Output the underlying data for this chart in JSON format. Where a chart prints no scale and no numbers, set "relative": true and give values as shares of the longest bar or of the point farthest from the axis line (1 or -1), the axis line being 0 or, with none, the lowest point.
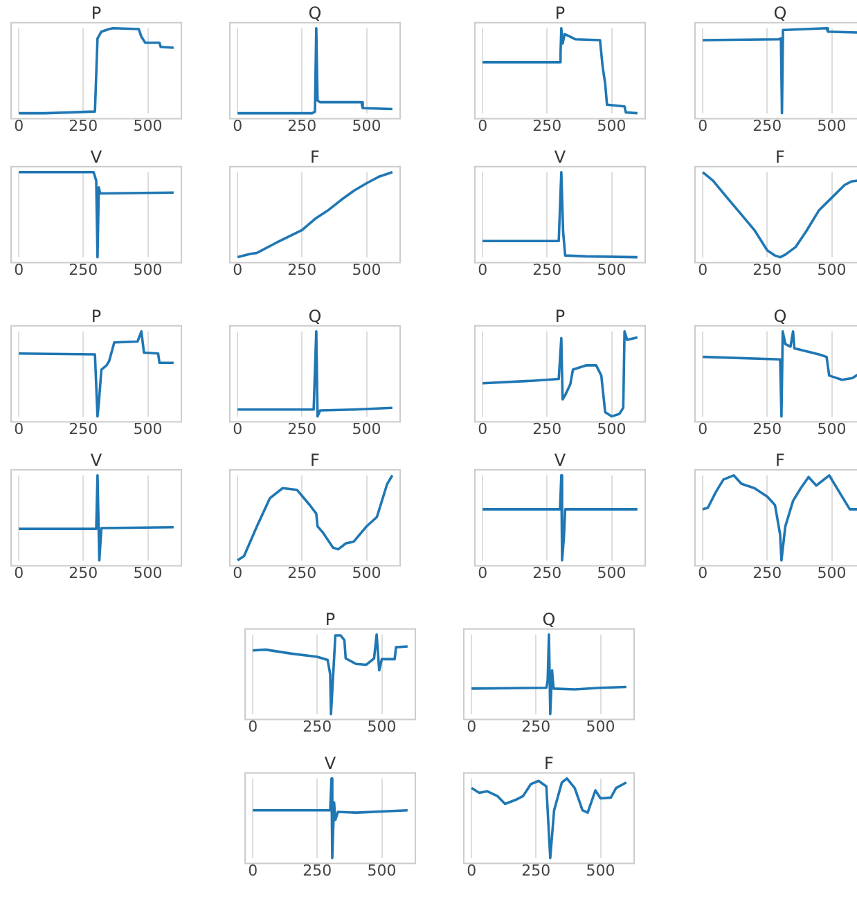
{
  "chart_data": [
    {
      "type": "line",
      "title": "P",
      "relative": true,
      "color": "#1f77b4",
      "xlim": [
        -30,
        630
      ],
      "xticks": [
        0,
        250,
        500
      ],
      "grid": "x",
      "tick_labels": "x",
      "x": [
        0,
        100,
        200,
        295,
        305,
        320,
        350,
        365,
        465,
        475,
        490,
        545,
        550,
        600
      ],
      "values": [
        0,
        0,
        0.01,
        0.02,
        0.88,
        0.96,
        0.99,
        1,
        0.99,
        0.9,
        0.83,
        0.83,
        0.78,
        0.77
      ]
    },
    {
      "type": "line",
      "title": "Q",
      "relative": true,
      "color": "#1f77b4",
      "xlim": [
        -30,
        630
      ],
      "xticks": [
        0,
        250,
        500
      ],
      "grid": "x",
      "tick_labels": "x",
      "x": [
        0,
        290,
        300,
        305,
        310,
        320,
        480,
        485,
        600
      ],
      "values": [
        0,
        0,
        0.02,
        1,
        0.15,
        0.13,
        0.13,
        0.06,
        0.05
      ]
    },
    {
      "type": "line",
      "title": "P",
      "relative": true,
      "color": "#1f77b4",
      "xlim": [
        -30,
        630
      ],
      "xticks": [
        0,
        250,
        500
      ],
      "grid": "x",
      "tick_labels": "x",
      "x": [
        0,
        150,
        298,
        302,
        305,
        310,
        318,
        340,
        360,
        455,
        465,
        475,
        482,
        550,
        555,
        600
      ],
      "values": [
        0.6,
        0.6,
        0.6,
        0.7,
        1,
        0.82,
        0.93,
        0.9,
        0.87,
        0.86,
        0.55,
        0.35,
        0.1,
        0.08,
        0.01,
        0
      ]
    },
    {
      "type": "line",
      "title": "Q",
      "relative": true,
      "color": "#1f77b4",
      "xlim": [
        -30,
        630
      ],
      "xticks": [
        0,
        250,
        500
      ],
      "grid": "x",
      "tick_labels": "x",
      "x": [
        0,
        295,
        303,
        307,
        311,
        320,
        480,
        485,
        600
      ],
      "values": [
        0.86,
        0.87,
        0.88,
        0,
        0.98,
        0.98,
        1,
        0.96,
        0.95
      ]
    },
    {
      "type": "line",
      "title": "V",
      "relative": true,
      "color": "#1f77b4",
      "xlim": [
        -30,
        630
      ],
      "xticks": [
        0,
        250,
        500
      ],
      "grid": "x",
      "tick_labels": "x",
      "x": [
        0,
        290,
        300,
        305,
        310,
        315,
        600
      ],
      "values": [
        1,
        1,
        0.9,
        0,
        0.82,
        0.75,
        0.76
      ]
    },
    {
      "type": "line",
      "title": "F",
      "relative": true,
      "color": "#1f77b4",
      "xlim": [
        -30,
        630
      ],
      "xticks": [
        0,
        250,
        500
      ],
      "grid": "x",
      "tick_labels": "x",
      "x": [
        0,
        50,
        75,
        150,
        250,
        300,
        350,
        400,
        450,
        500,
        550,
        600
      ],
      "values": [
        0,
        0.04,
        0.05,
        0.17,
        0.32,
        0.45,
        0.55,
        0.67,
        0.78,
        0.87,
        0.95,
        1
      ]
    },
    {
      "type": "line",
      "title": "V",
      "relative": true,
      "color": "#1f77b4",
      "xlim": [
        -30,
        630
      ],
      "xticks": [
        0,
        250,
        500
      ],
      "grid": "x",
      "tick_labels": "x",
      "x": [
        0,
        295,
        305,
        312,
        320,
        400,
        600
      ],
      "values": [
        0.19,
        0.19,
        1,
        0.3,
        0.02,
        0.01,
        0
      ]
    },
    {
      "type": "line",
      "title": "F",
      "relative": true,
      "color": "#1f77b4",
      "xlim": [
        -30,
        630
      ],
      "xticks": [
        0,
        250,
        500
      ],
      "grid": "x",
      "tick_labels": "x",
      "x": [
        0,
        40,
        100,
        150,
        200,
        250,
        280,
        300,
        320,
        360,
        400,
        450,
        500,
        550,
        575,
        600
      ],
      "values": [
        1,
        0.9,
        0.68,
        0.5,
        0.32,
        0.08,
        0.02,
        0,
        0.03,
        0.12,
        0.3,
        0.55,
        0.7,
        0.85,
        0.89,
        0.9
      ]
    },
    {
      "type": "line",
      "title": "P",
      "relative": true,
      "color": "#1f77b4",
      "xlim": [
        -30,
        630
      ],
      "xticks": [
        0,
        250,
        500
      ],
      "grid": "x",
      "tick_labels": "x",
      "x": [
        0,
        295,
        305,
        310,
        320,
        340,
        350,
        370,
        460,
        475,
        485,
        540,
        545,
        600
      ],
      "values": [
        0.74,
        0.73,
        0,
        0.15,
        0.55,
        0.6,
        0.65,
        0.87,
        0.88,
        1,
        0.75,
        0.74,
        0.63,
        0.63
      ]
    },
    {
      "type": "line",
      "title": "Q",
      "relative": true,
      "color": "#1f77b4",
      "xlim": [
        -30,
        630
      ],
      "xticks": [
        0,
        250,
        500
      ],
      "grid": "x",
      "tick_labels": "x",
      "x": [
        0,
        295,
        305,
        310,
        320,
        450,
        600
      ],
      "values": [
        0.08,
        0.08,
        1,
        0,
        0.07,
        0.08,
        0.1
      ]
    },
    {
      "type": "line",
      "title": "P",
      "relative": true,
      "color": "#1f77b4",
      "xlim": [
        -30,
        630
      ],
      "xticks": [
        0,
        250,
        500
      ],
      "grid": "x",
      "tick_labels": "x",
      "x": [
        0,
        200,
        295,
        305,
        310,
        320,
        340,
        350,
        400,
        440,
        460,
        475,
        500,
        530,
        545,
        550,
        560,
        600
      ],
      "values": [
        0.39,
        0.42,
        0.44,
        0.92,
        0.2,
        0.25,
        0.38,
        0.55,
        0.6,
        0.6,
        0.48,
        0.05,
        0,
        0.03,
        0.1,
        1,
        0.9,
        0.93
      ]
    },
    {
      "type": "line",
      "title": "Q",
      "relative": true,
      "color": "#1f77b4",
      "xlim": [
        -30,
        630
      ],
      "xticks": [
        0,
        250,
        500
      ],
      "grid": "x",
      "tick_labels": "x",
      "x": [
        0,
        300,
        305,
        310,
        320,
        340,
        350,
        355,
        450,
        480,
        490,
        540,
        580,
        600
      ],
      "values": [
        0.7,
        0.67,
        0,
        1,
        0.85,
        0.82,
        1,
        0.8,
        0.73,
        0.7,
        0.48,
        0.43,
        0.45,
        0.49
      ]
    },
    {
      "type": "line",
      "title": "V",
      "relative": true,
      "color": "#1f77b4",
      "xlim": [
        -30,
        630
      ],
      "xticks": [
        0,
        250,
        500
      ],
      "grid": "x",
      "tick_labels": "x",
      "x": [
        0,
        300,
        305,
        312,
        320,
        600
      ],
      "values": [
        0.37,
        0.37,
        1,
        0,
        0.38,
        0.39
      ]
    },
    {
      "type": "line",
      "title": "F",
      "relative": true,
      "color": "#1f77b4",
      "xlim": [
        -30,
        630
      ],
      "xticks": [
        0,
        250,
        500
      ],
      "grid": "x",
      "tick_labels": "x",
      "x": [
        0,
        25,
        75,
        125,
        175,
        230,
        280,
        305,
        310,
        330,
        370,
        390,
        420,
        450,
        500,
        540,
        580,
        600
      ],
      "values": [
        0,
        0.05,
        0.4,
        0.73,
        0.85,
        0.83,
        0.65,
        0.55,
        0.4,
        0.33,
        0.15,
        0.13,
        0.2,
        0.22,
        0.4,
        0.51,
        0.9,
        1
      ]
    },
    {
      "type": "line",
      "title": "V",
      "relative": true,
      "color": "#1f77b4",
      "xlim": [
        -30,
        630
      ],
      "xticks": [
        0,
        250,
        500
      ],
      "grid": "x",
      "tick_labels": "x",
      "x": [
        0,
        300,
        305,
        308,
        315,
        320,
        600
      ],
      "values": [
        0.6,
        0.6,
        1,
        0,
        0.27,
        0.6,
        0.6
      ]
    },
    {
      "type": "line",
      "title": "F",
      "relative": true,
      "color": "#1f77b4",
      "xlim": [
        -30,
        630
      ],
      "xticks": [
        0,
        250,
        500
      ],
      "grid": "x",
      "tick_labels": "x",
      "x": [
        0,
        20,
        50,
        80,
        120,
        150,
        200,
        250,
        280,
        300,
        305,
        320,
        350,
        380,
        410,
        440,
        490,
        530,
        570,
        600
      ],
      "values": [
        0.6,
        0.62,
        0.8,
        0.95,
        1,
        0.9,
        0.85,
        0.75,
        0.65,
        0.3,
        0,
        0.4,
        0.7,
        0.85,
        0.98,
        0.88,
        1,
        0.8,
        0.6,
        0.6
      ]
    },
    {
      "type": "line",
      "title": "P",
      "relative": true,
      "color": "#1f77b4",
      "xlim": [
        -30,
        630
      ],
      "xticks": [
        0,
        250,
        500
      ],
      "grid": "x",
      "tick_labels": "x",
      "x": [
        0,
        50,
        150,
        250,
        290,
        300,
        303,
        310,
        320,
        340,
        355,
        360,
        400,
        440,
        470,
        480,
        490,
        500,
        550,
        555,
        600
      ],
      "values": [
        0.8,
        0.81,
        0.76,
        0.72,
        0.68,
        0.5,
        0,
        0.4,
        0.99,
        0.99,
        0.93,
        0.7,
        0.63,
        0.62,
        0.7,
        1,
        0.55,
        0.69,
        0.69,
        0.84,
        0.85
      ]
    },
    {
      "type": "line",
      "title": "Q",
      "relative": true,
      "color": "#1f77b4",
      "xlim": [
        -30,
        630
      ],
      "xticks": [
        0,
        250,
        500
      ],
      "grid": "x",
      "tick_labels": "x",
      "x": [
        0,
        290,
        295,
        300,
        305,
        312,
        318,
        400,
        500,
        600
      ],
      "values": [
        0.32,
        0.33,
        0.42,
        1,
        0,
        0.55,
        0.32,
        0.31,
        0.33,
        0.34
      ]
    },
    {
      "type": "line",
      "title": "V",
      "relative": true,
      "color": "#1f77b4",
      "xlim": [
        -30,
        630
      ],
      "xticks": [
        0,
        250,
        500
      ],
      "grid": "x",
      "tick_labels": "x",
      "x": [
        0,
        300,
        305,
        308,
        315,
        320,
        330,
        400,
        600
      ],
      "values": [
        0.6,
        0.6,
        1,
        0,
        0.7,
        0.48,
        0.58,
        0.57,
        0.6
      ]
    },
    {
      "type": "line",
      "title": "F",
      "relative": true,
      "color": "#1f77b4",
      "xlim": [
        -30,
        630
      ],
      "xticks": [
        0,
        250,
        500
      ],
      "grid": "x",
      "tick_labels": "x",
      "x": [
        0,
        30,
        60,
        100,
        130,
        170,
        200,
        230,
        260,
        290,
        305,
        320,
        350,
        370,
        400,
        430,
        450,
        480,
        500,
        540,
        560,
        600
      ],
      "values": [
        0.88,
        0.82,
        0.84,
        0.78,
        0.68,
        0.73,
        0.78,
        0.93,
        0.97,
        0.9,
        0,
        0.6,
        0.95,
        1,
        0.88,
        0.6,
        0.57,
        0.85,
        0.75,
        0.76,
        0.88,
        0.95
      ]
    }
  ]
}
